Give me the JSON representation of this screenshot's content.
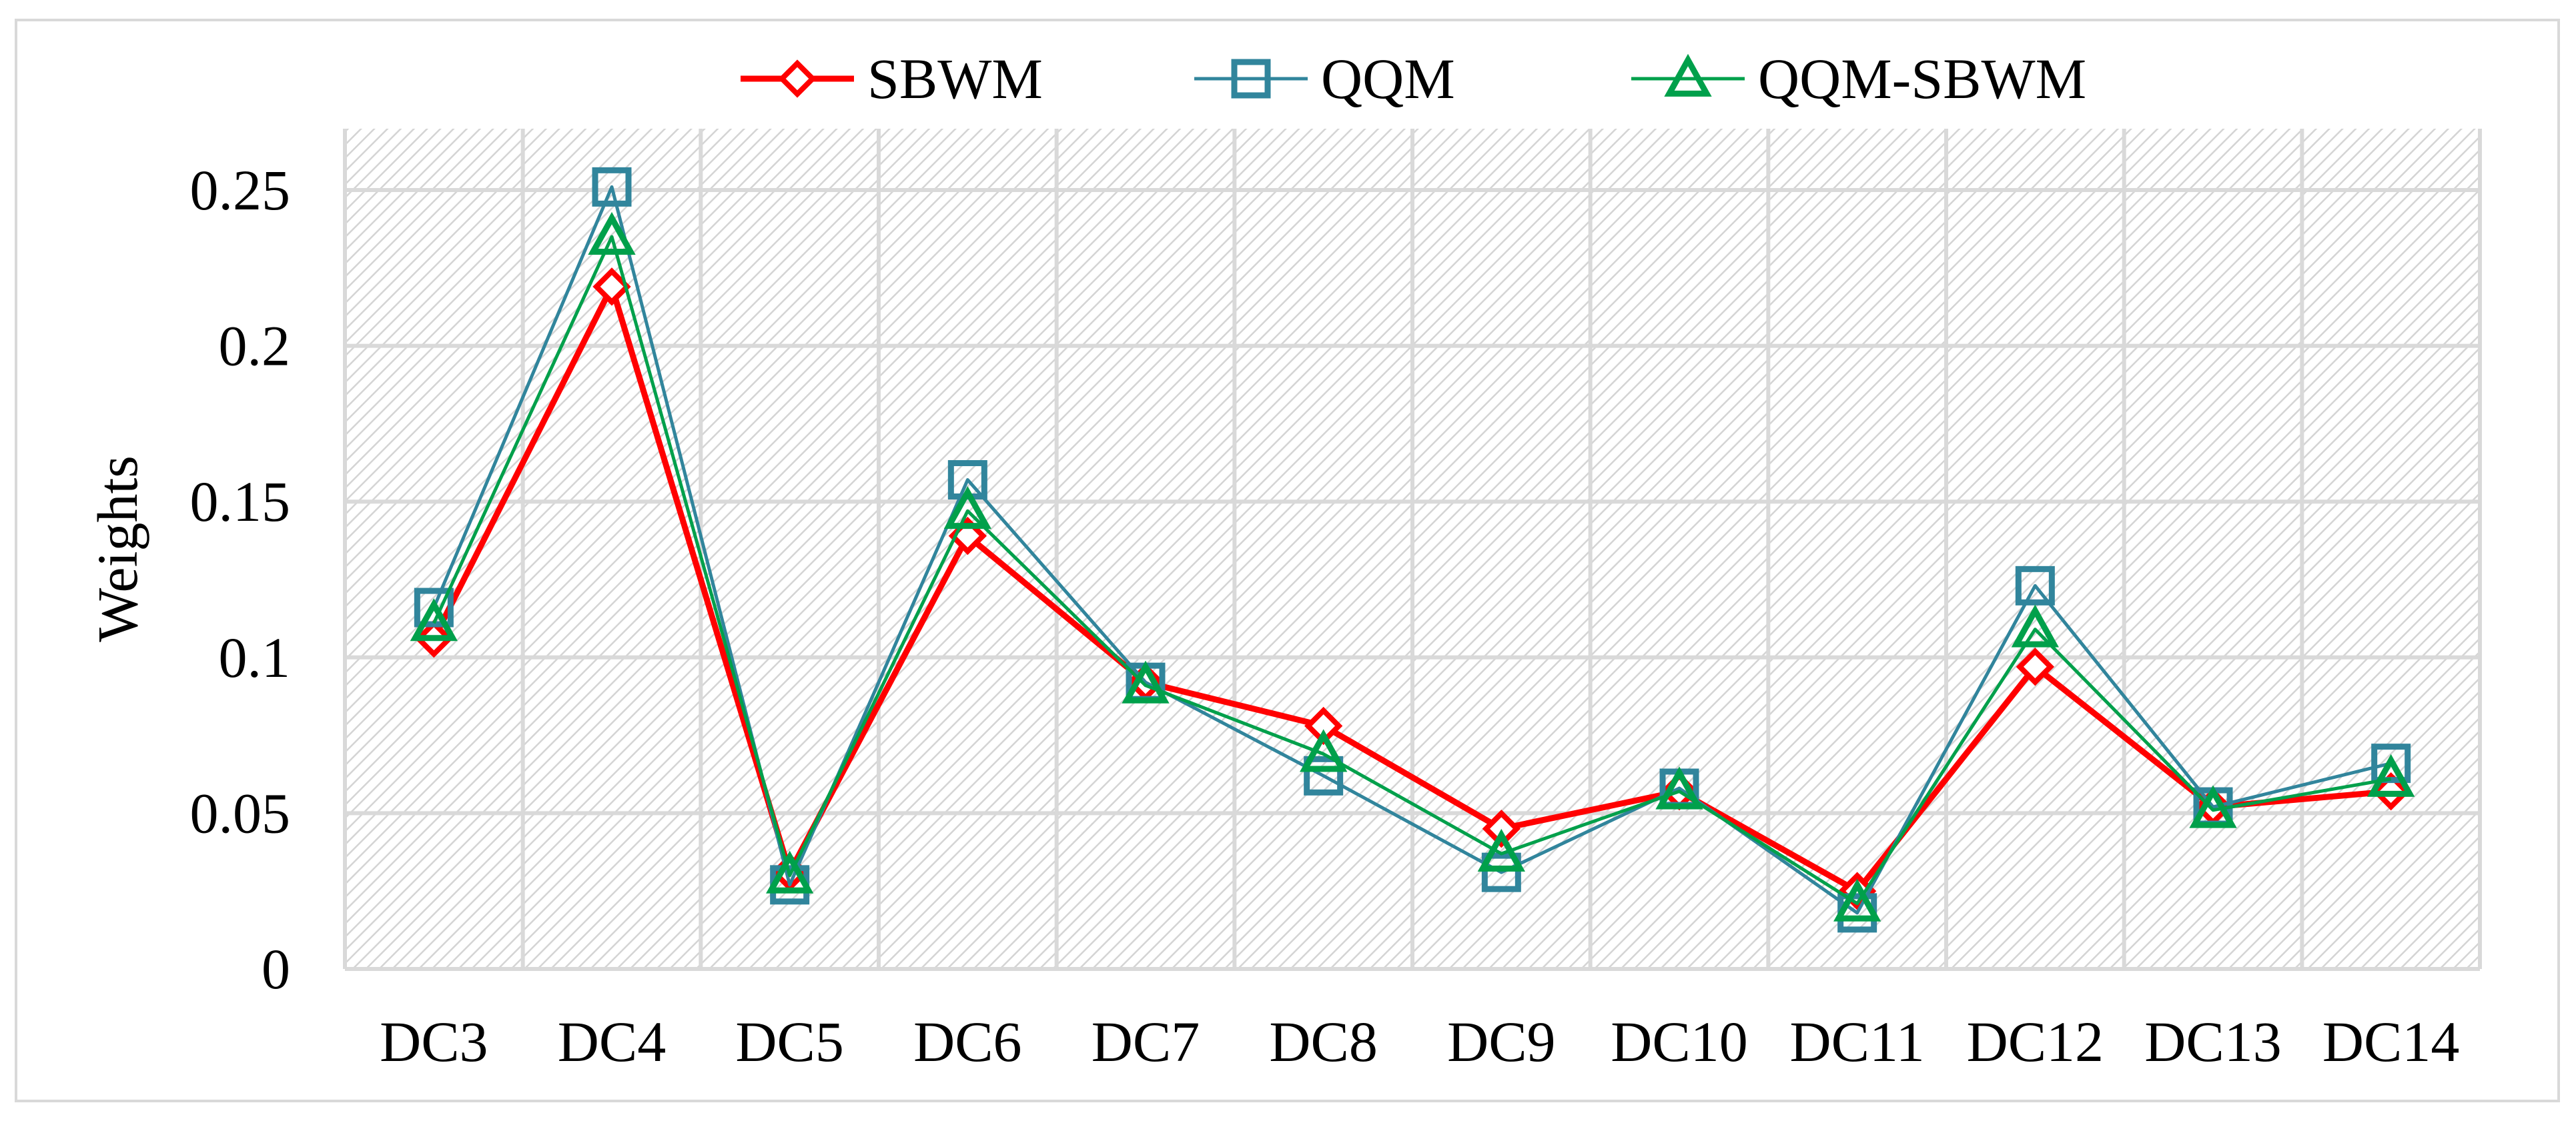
{
  "chart_data": {
    "type": "line",
    "title": "",
    "xlabel": "",
    "ylabel": "Weights",
    "categories": [
      "DC3",
      "DC4",
      "DC5",
      "DC6",
      "DC7",
      "DC8",
      "DC9",
      "DC10",
      "DC11",
      "DC12",
      "DC13",
      "DC14"
    ],
    "ylim": [
      0,
      0.25
    ],
    "yticks": [
      "0",
      "0.05",
      "0.1",
      "0.15",
      "0.2",
      "0.25"
    ],
    "grid": true,
    "legend_position": "top",
    "series": [
      {
        "name": "SBWM",
        "color": "#ff0000",
        "marker": "diamond",
        "values": [
          0.106,
          0.219,
          0.031,
          0.139,
          0.092,
          0.078,
          0.045,
          0.057,
          0.025,
          0.097,
          0.052,
          0.057
        ]
      },
      {
        "name": "QQM",
        "color": "#31859c",
        "marker": "square",
        "values": [
          0.116,
          0.251,
          0.027,
          0.157,
          0.092,
          0.062,
          0.031,
          0.058,
          0.018,
          0.123,
          0.052,
          0.066
        ]
      },
      {
        "name": "QQM-SBWM",
        "color": "#00a04b",
        "marker": "triangle",
        "values": [
          0.111,
          0.235,
          0.03,
          0.147,
          0.091,
          0.069,
          0.037,
          0.057,
          0.021,
          0.109,
          0.051,
          0.061
        ]
      }
    ]
  }
}
